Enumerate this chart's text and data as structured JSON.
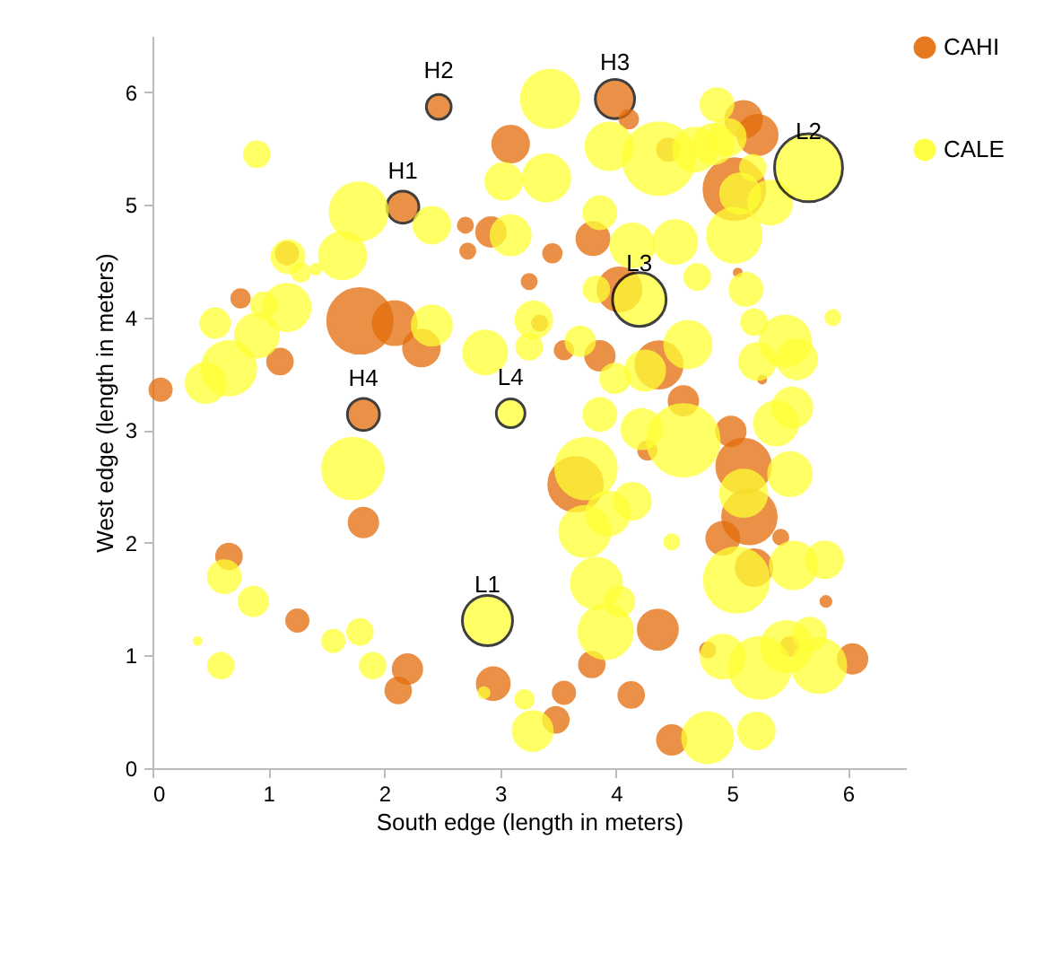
{
  "chart_data": {
    "type": "bubble",
    "xlabel": "South edge (length in meters)",
    "ylabel": "West edge (length in meters)",
    "xlim": [
      0,
      6.5
    ],
    "ylim": [
      0,
      6.5
    ],
    "xticks": [
      0,
      1,
      2,
      3,
      4,
      5,
      6
    ],
    "yticks": [
      0,
      1,
      2,
      3,
      4,
      5,
      6
    ],
    "grid": false,
    "legend": "right",
    "annotations": [
      {
        "text": "H1",
        "x": 2.16,
        "y": 4.98
      },
      {
        "text": "H2",
        "x": 2.47,
        "y": 5.87
      },
      {
        "text": "H3",
        "x": 3.99,
        "y": 5.94
      },
      {
        "text": "H4",
        "x": 1.82,
        "y": 3.14
      },
      {
        "text": "L1",
        "x": 2.89,
        "y": 1.31
      },
      {
        "text": "L2",
        "x": 5.66,
        "y": 5.33
      },
      {
        "text": "L3",
        "x": 4.2,
        "y": 4.16
      },
      {
        "text": "L4",
        "x": 3.09,
        "y": 3.15
      }
    ],
    "series": [
      {
        "name": "CAHI",
        "color": "#e46c0a",
        "x": [
          0.07,
          0.76,
          1.1,
          1.16,
          1.79,
          2.09,
          2.32,
          2.16,
          2.47,
          3.09,
          2.7,
          2.72,
          2.92,
          3.25,
          1.82,
          3.99,
          4.11,
          5.1,
          5.22,
          5.02,
          4.45,
          3.8,
          3.45,
          3.34,
          3.55,
          3.86,
          4.03,
          4.37,
          4.58,
          5.05,
          5.26,
          4.27,
          3.65,
          4.99,
          5.1,
          5.15,
          4.92,
          5.42,
          5.19,
          5.81,
          4.36,
          3.79,
          3.55,
          3.48,
          4.13,
          4.48,
          4.79,
          5.5,
          6.04,
          2.94,
          0.66,
          1.25,
          1.82,
          2.2,
          2.12
        ],
        "values": [
          3.36,
          4.17,
          3.61,
          4.57,
          3.97,
          3.95,
          3.73,
          4.98,
          5.87,
          5.54,
          4.82,
          4.59,
          4.76,
          4.32,
          3.14,
          5.94,
          5.76,
          5.76,
          5.62,
          5.14,
          5.49,
          4.7,
          4.57,
          3.95,
          3.71,
          3.66,
          4.25,
          3.58,
          3.26,
          4.4,
          3.45,
          2.82,
          2.52,
          2.99,
          2.68,
          2.23,
          2.04,
          2.05,
          1.78,
          1.48,
          1.23,
          0.92,
          0.67,
          0.43,
          0.65,
          0.25,
          1.05,
          1.08,
          0.97,
          0.75,
          1.88,
          1.31,
          2.18,
          0.88,
          0.69
        ],
        "sizes": [
          0.09,
          0.06,
          0.12,
          0.09,
          0.81,
          0.36,
          0.25,
          0.2,
          0.12,
          0.25,
          0.04,
          0.04,
          0.16,
          0.04,
          0.2,
          0.3,
          0.06,
          0.25,
          0.3,
          0.72,
          0.09,
          0.2,
          0.06,
          0.04,
          0.06,
          0.16,
          0.36,
          0.42,
          0.16,
          0.01,
          0.01,
          0.06,
          0.56,
          0.16,
          0.56,
          0.56,
          0.2,
          0.04,
          0.25,
          0.02,
          0.3,
          0.12,
          0.09,
          0.12,
          0.12,
          0.16,
          0.04,
          0.06,
          0.16,
          0.2,
          0.12,
          0.09,
          0.16,
          0.16,
          0.12
        ]
      },
      {
        "name": "CALE",
        "color": "#ffff33",
        "x": [
          0.9,
          1.78,
          2.41,
          3.03,
          3.43,
          1.64,
          1.17,
          1.28,
          1.41,
          3.09,
          0.54,
          0.96,
          1.16,
          0.9,
          0.66,
          0.46,
          2.41,
          2.87,
          3.09,
          2.89,
          3.94,
          3.4,
          4.37,
          4.87,
          4.68,
          4.84,
          4.96,
          5.18,
          5.07,
          5.33,
          5.66,
          5.02,
          4.51,
          4.14,
          3.86,
          4.2,
          4.7,
          5.12,
          5.87,
          5.19,
          5.46,
          5.56,
          5.22,
          3.83,
          3.29,
          3.25,
          3.69,
          3.99,
          4.25,
          4.62,
          3.86,
          4.22,
          4.58,
          5.38,
          5.52,
          3.74,
          4.14,
          3.93,
          3.73,
          5.1,
          5.5,
          4.48,
          5.04,
          5.53,
          5.8,
          3.83,
          4.03,
          3.91,
          4.92,
          5.24,
          5.47,
          5.67,
          5.75,
          3.21,
          3.28,
          4.79,
          5.21,
          0.62,
          0.87,
          0.39,
          0.59,
          1.56,
          1.79,
          1.9,
          2.86,
          1.73
        ],
        "values": [
          5.45,
          4.94,
          4.82,
          5.21,
          5.94,
          4.55,
          4.54,
          4.4,
          4.43,
          4.73,
          3.95,
          4.11,
          4.09,
          3.84,
          3.55,
          3.42,
          3.93,
          3.69,
          3.15,
          1.31,
          5.52,
          5.24,
          5.41,
          5.89,
          5.49,
          5.54,
          5.6,
          5.33,
          5.1,
          5.02,
          5.33,
          4.73,
          4.67,
          4.64,
          4.93,
          4.16,
          4.36,
          4.25,
          4.0,
          3.96,
          3.79,
          3.63,
          3.61,
          4.25,
          3.98,
          3.74,
          3.79,
          3.46,
          3.53,
          3.76,
          3.14,
          3.01,
          2.91,
          3.06,
          3.2,
          2.66,
          2.37,
          2.26,
          2.1,
          2.44,
          2.61,
          2.01,
          1.67,
          1.8,
          1.85,
          1.64,
          1.48,
          1.21,
          0.99,
          0.89,
          1.08,
          1.19,
          0.91,
          0.61,
          0.33,
          0.27,
          0.33,
          1.7,
          1.48,
          1.13,
          0.91,
          1.13,
          1.21,
          0.91,
          0.67,
          2.66
        ],
        "sizes": [
          0.12,
          0.64,
          0.25,
          0.25,
          0.64,
          0.42,
          0.2,
          0.06,
          0.02,
          0.3,
          0.16,
          0.12,
          0.42,
          0.36,
          0.56,
          0.3,
          0.3,
          0.36,
          0.16,
          0.49,
          0.42,
          0.42,
          1,
          0.2,
          0.36,
          0.3,
          0.25,
          0.12,
          0.3,
          0.36,
          0.9,
          0.56,
          0.36,
          0.36,
          0.2,
          0.56,
          0.12,
          0.2,
          0.04,
          0.12,
          0.49,
          0.3,
          0.25,
          0.12,
          0.25,
          0.12,
          0.16,
          0.16,
          0.3,
          0.42,
          0.2,
          0.3,
          1,
          0.36,
          0.3,
          0.72,
          0.25,
          0.36,
          0.49,
          0.42,
          0.36,
          0.04,
          0.81,
          0.42,
          0.25,
          0.49,
          0.16,
          0.56,
          0.36,
          0.72,
          0.49,
          0.2,
          0.56,
          0.06,
          0.3,
          0.49,
          0.25,
          0.2,
          0.16,
          0.01,
          0.12,
          0.09,
          0.12,
          0.12,
          0.02,
          0.72
        ]
      }
    ]
  }
}
